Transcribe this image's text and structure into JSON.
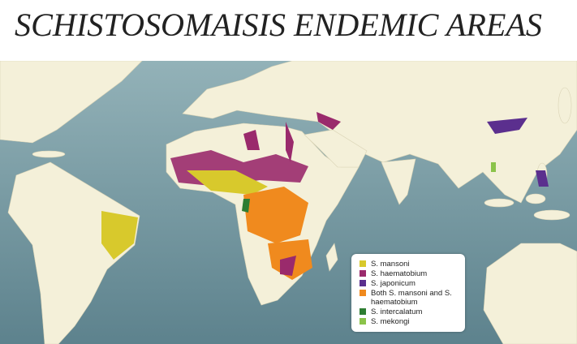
{
  "header": {
    "title": "SCHISTOSOMAISIS ENDEMIC AREAS"
  },
  "legend": {
    "items": [
      {
        "label": "S. mansoni",
        "color": "#d8c92c"
      },
      {
        "label": "S. haematobium",
        "color": "#9a2a6c"
      },
      {
        "label": "S. japonicum",
        "color": "#5b2f8e"
      },
      {
        "label": "Both S. mansoni and S. haematobium",
        "color": "#f08a1e"
      },
      {
        "label": "S. intercalatum",
        "color": "#2e7d32"
      },
      {
        "label": "S. mekongi",
        "color": "#8bc34a"
      }
    ]
  }
}
